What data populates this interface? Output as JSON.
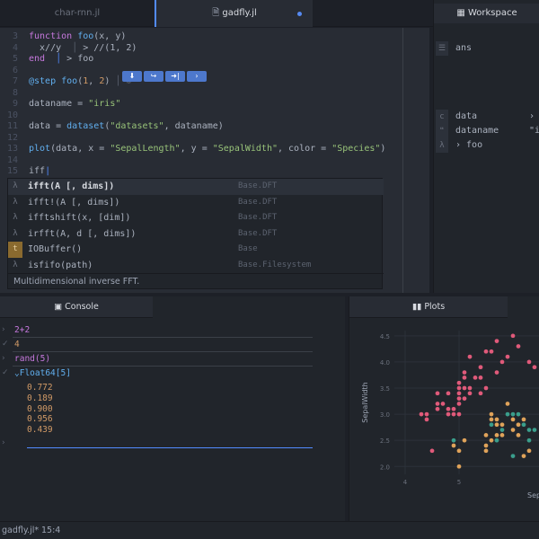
{
  "tabs": [
    {
      "label": "char-rnn.jl",
      "active": false
    },
    {
      "label": "gadfly.jl",
      "active": true,
      "modified": true
    }
  ],
  "workspace_tab": {
    "label": "Workspace"
  },
  "editor": {
    "lines": [
      {
        "n": "3",
        "html": "<span class='kw'>function</span> <span class='fn'>foo</span>(x, y)"
      },
      {
        "n": "4",
        "html": "  x//y  <span style='color:#5c6370'>│</span> &gt; //(1, 2)"
      },
      {
        "n": "5",
        "html": "<span class='kw'>end</span>  <span style='color:#528bff'>│</span> &gt; foo"
      },
      {
        "n": "6",
        "html": ""
      },
      {
        "n": "7",
        "html": "<span class='fn'>@step</span> <span class='fn'>foo</span>(<span class='num'>1</span>, <span class='num'>2</span>) <span style='color:#5c6370'>│ ⚙</span>"
      },
      {
        "n": "8",
        "html": ""
      },
      {
        "n": "9",
        "html": "dataname = <span class='str'>\"iris\"</span>"
      },
      {
        "n": "10",
        "html": ""
      },
      {
        "n": "11",
        "html": "data = <span class='fn'>dataset</span>(<span class='str'>\"datasets\"</span>, dataname)"
      },
      {
        "n": "12",
        "html": ""
      },
      {
        "n": "13",
        "html": "<span class='fn'>plot</span>(data, x = <span class='str'>\"SepalLength\"</span>, y = <span class='str'>\"SepalWidth\"</span>, color = <span class='str'>\"Species\"</span>)"
      },
      {
        "n": "14",
        "html": ""
      },
      {
        "n": "15",
        "html": "iff<span style='color:#528bff'>|</span>"
      }
    ],
    "step_buttons": [
      "⬇",
      "↪",
      "➜|",
      "›"
    ]
  },
  "autocomplete": {
    "items": [
      {
        "icon": "λ",
        "label": "ifft(A [, dims])",
        "module": "Base.DFT",
        "selected": true
      },
      {
        "icon": "λ",
        "label": "ifft!(A [, dims])",
        "module": "Base.DFT"
      },
      {
        "icon": "λ",
        "label": "ifftshift(x, [dim])",
        "module": "Base.DFT"
      },
      {
        "icon": "λ",
        "label": "irfft(A, d [, dims])",
        "module": "Base.DFT"
      },
      {
        "icon": "t",
        "label": "IOBuffer()",
        "module": "Base"
      },
      {
        "icon": "λ",
        "label": "isfifo(path)",
        "module": "Base.Filesystem"
      }
    ],
    "description": "Multidimensional inverse FFT."
  },
  "workspace": {
    "items": [
      {
        "icon": "☰",
        "name": "ans",
        "value": "",
        "top": 46
      },
      {
        "icon": "c",
        "name": "data",
        "value": "›",
        "top": 122
      },
      {
        "icon": "❝",
        "name": "dataname",
        "value": "\"i",
        "top": 138
      },
      {
        "icon": "λ",
        "name": "› foo",
        "value": "",
        "top": 154
      }
    ]
  },
  "console": {
    "tab_label": "Console",
    "entries": [
      {
        "mark": "›",
        "text": "2+2",
        "color": "#c678dd",
        "top": 32
      },
      {
        "mark": "✓",
        "text": "4",
        "color": "#d19a66",
        "top": 48
      },
      {
        "mark": "›",
        "text": "rand(5)",
        "color": "#c678dd",
        "top": 64
      },
      {
        "mark": "✓",
        "text": "⌄Float64[5]",
        "color": "#61afef",
        "top": 80
      }
    ],
    "values": [
      "0.772",
      "0.189",
      "0.900",
      "0.956",
      "0.439"
    ],
    "prompt": "›"
  },
  "plots": {
    "tab_label": "Plots"
  },
  "chart_data": {
    "type": "scatter",
    "title": "",
    "xlabel": "Sep",
    "ylabel": "SepalWidth",
    "xlim": [
      3.8,
      6.5
    ],
    "ylim": [
      1.85,
      4.6
    ],
    "xticks": [
      "4",
      "5"
    ],
    "yticks": [
      "2.0",
      "2.5",
      "3.0",
      "3.5",
      "4.0",
      "4.5"
    ],
    "series": [
      {
        "color": "#e05a7a",
        "points": [
          [
            4.4,
            3.0
          ],
          [
            4.4,
            2.9
          ],
          [
            4.6,
            3.1
          ],
          [
            4.6,
            3.4
          ],
          [
            4.6,
            3.2
          ],
          [
            4.7,
            3.2
          ],
          [
            4.8,
            3.0
          ],
          [
            4.8,
            3.4
          ],
          [
            4.8,
            3.1
          ],
          [
            4.9,
            3.0
          ],
          [
            4.9,
            3.1
          ],
          [
            5.0,
            3.6
          ],
          [
            5.0,
            3.4
          ],
          [
            5.0,
            3.0
          ],
          [
            5.0,
            3.3
          ],
          [
            5.0,
            3.5
          ],
          [
            5.1,
            3.5
          ],
          [
            5.1,
            3.8
          ],
          [
            5.1,
            3.7
          ],
          [
            5.1,
            3.3
          ],
          [
            5.2,
            3.4
          ],
          [
            5.2,
            3.5
          ],
          [
            5.2,
            4.1
          ],
          [
            5.3,
            3.7
          ],
          [
            5.4,
            3.9
          ],
          [
            5.4,
            3.7
          ],
          [
            5.4,
            3.4
          ],
          [
            5.5,
            4.2
          ],
          [
            5.5,
            3.5
          ],
          [
            5.7,
            3.8
          ],
          [
            5.7,
            4.4
          ],
          [
            5.8,
            4.0
          ],
          [
            5.4,
            3.9
          ],
          [
            5.0,
            3.2
          ],
          [
            4.5,
            2.3
          ],
          [
            4.3,
            3.0
          ],
          [
            5.6,
            4.2
          ],
          [
            6.0,
            4.5
          ],
          [
            5.9,
            4.1
          ],
          [
            6.1,
            4.3
          ],
          [
            6.3,
            4.0
          ],
          [
            6.4,
            3.9
          ]
        ]
      },
      {
        "color": "#e0a35a",
        "points": [
          [
            5.0,
            2.0
          ],
          [
            4.9,
            2.4
          ],
          [
            5.0,
            2.3
          ],
          [
            5.1,
            2.5
          ],
          [
            5.5,
            2.3
          ],
          [
            5.6,
            2.9
          ],
          [
            5.7,
            2.8
          ],
          [
            5.8,
            2.7
          ],
          [
            5.6,
            3.0
          ],
          [
            5.7,
            2.6
          ],
          [
            5.5,
            2.4
          ],
          [
            5.6,
            2.5
          ],
          [
            5.8,
            2.6
          ],
          [
            5.9,
            3.0
          ],
          [
            6.0,
            2.2
          ],
          [
            6.0,
            2.9
          ],
          [
            6.1,
            2.8
          ],
          [
            6.2,
            2.2
          ],
          [
            6.2,
            2.9
          ],
          [
            6.3,
            2.5
          ],
          [
            6.1,
            3.0
          ],
          [
            5.8,
            2.8
          ],
          [
            5.9,
            3.2
          ],
          [
            6.0,
            2.7
          ],
          [
            6.1,
            2.6
          ],
          [
            6.3,
            2.3
          ],
          [
            5.7,
            2.9
          ],
          [
            5.5,
            2.6
          ],
          [
            5.7,
            2.5
          ]
        ]
      },
      {
        "color": "#3a9e8c",
        "points": [
          [
            4.9,
            2.5
          ],
          [
            5.6,
            2.8
          ],
          [
            5.7,
            2.5
          ],
          [
            5.8,
            2.7
          ],
          [
            6.0,
            3.0
          ],
          [
            6.0,
            2.2
          ],
          [
            6.3,
            2.5
          ],
          [
            6.2,
            2.8
          ],
          [
            6.1,
            3.0
          ],
          [
            6.4,
            2.7
          ],
          [
            5.9,
            3.0
          ],
          [
            6.3,
            2.7
          ]
        ]
      }
    ]
  },
  "statusbar": {
    "file": "gadfly.jl*",
    "position": "15:4"
  }
}
